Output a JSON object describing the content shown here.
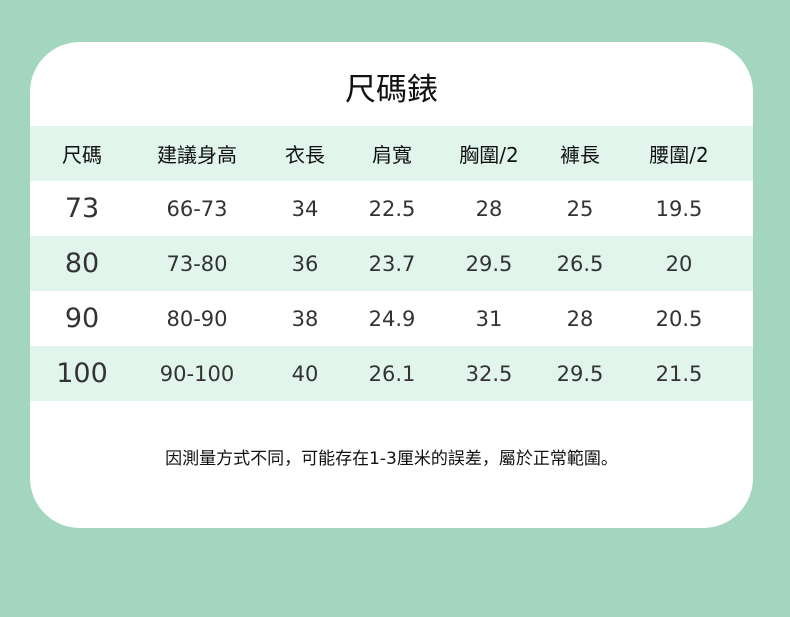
{
  "title": "尺碼錶",
  "headers": [
    "尺碼",
    "建議身高",
    "衣長",
    "肩寬",
    "胸圍/2",
    "褲長",
    "腰圍/2"
  ],
  "rows": [
    [
      "73",
      "66-73",
      "34",
      "22.5",
      "28",
      "25",
      "19.5"
    ],
    [
      "80",
      "73-80",
      "36",
      "23.7",
      "29.5",
      "26.5",
      "20"
    ],
    [
      "90",
      "80-90",
      "38",
      "24.9",
      "31",
      "28",
      "20.5"
    ],
    [
      "100",
      "90-100",
      "40",
      "26.1",
      "32.5",
      "29.5",
      "21.5"
    ]
  ],
  "note": "因測量方式不同，可能存在1-3厘米的誤差，屬於正常範圍。",
  "colors": {
    "background": "#a4d6bf",
    "row_highlight": "#e1f5ec",
    "card": "#ffffff"
  }
}
